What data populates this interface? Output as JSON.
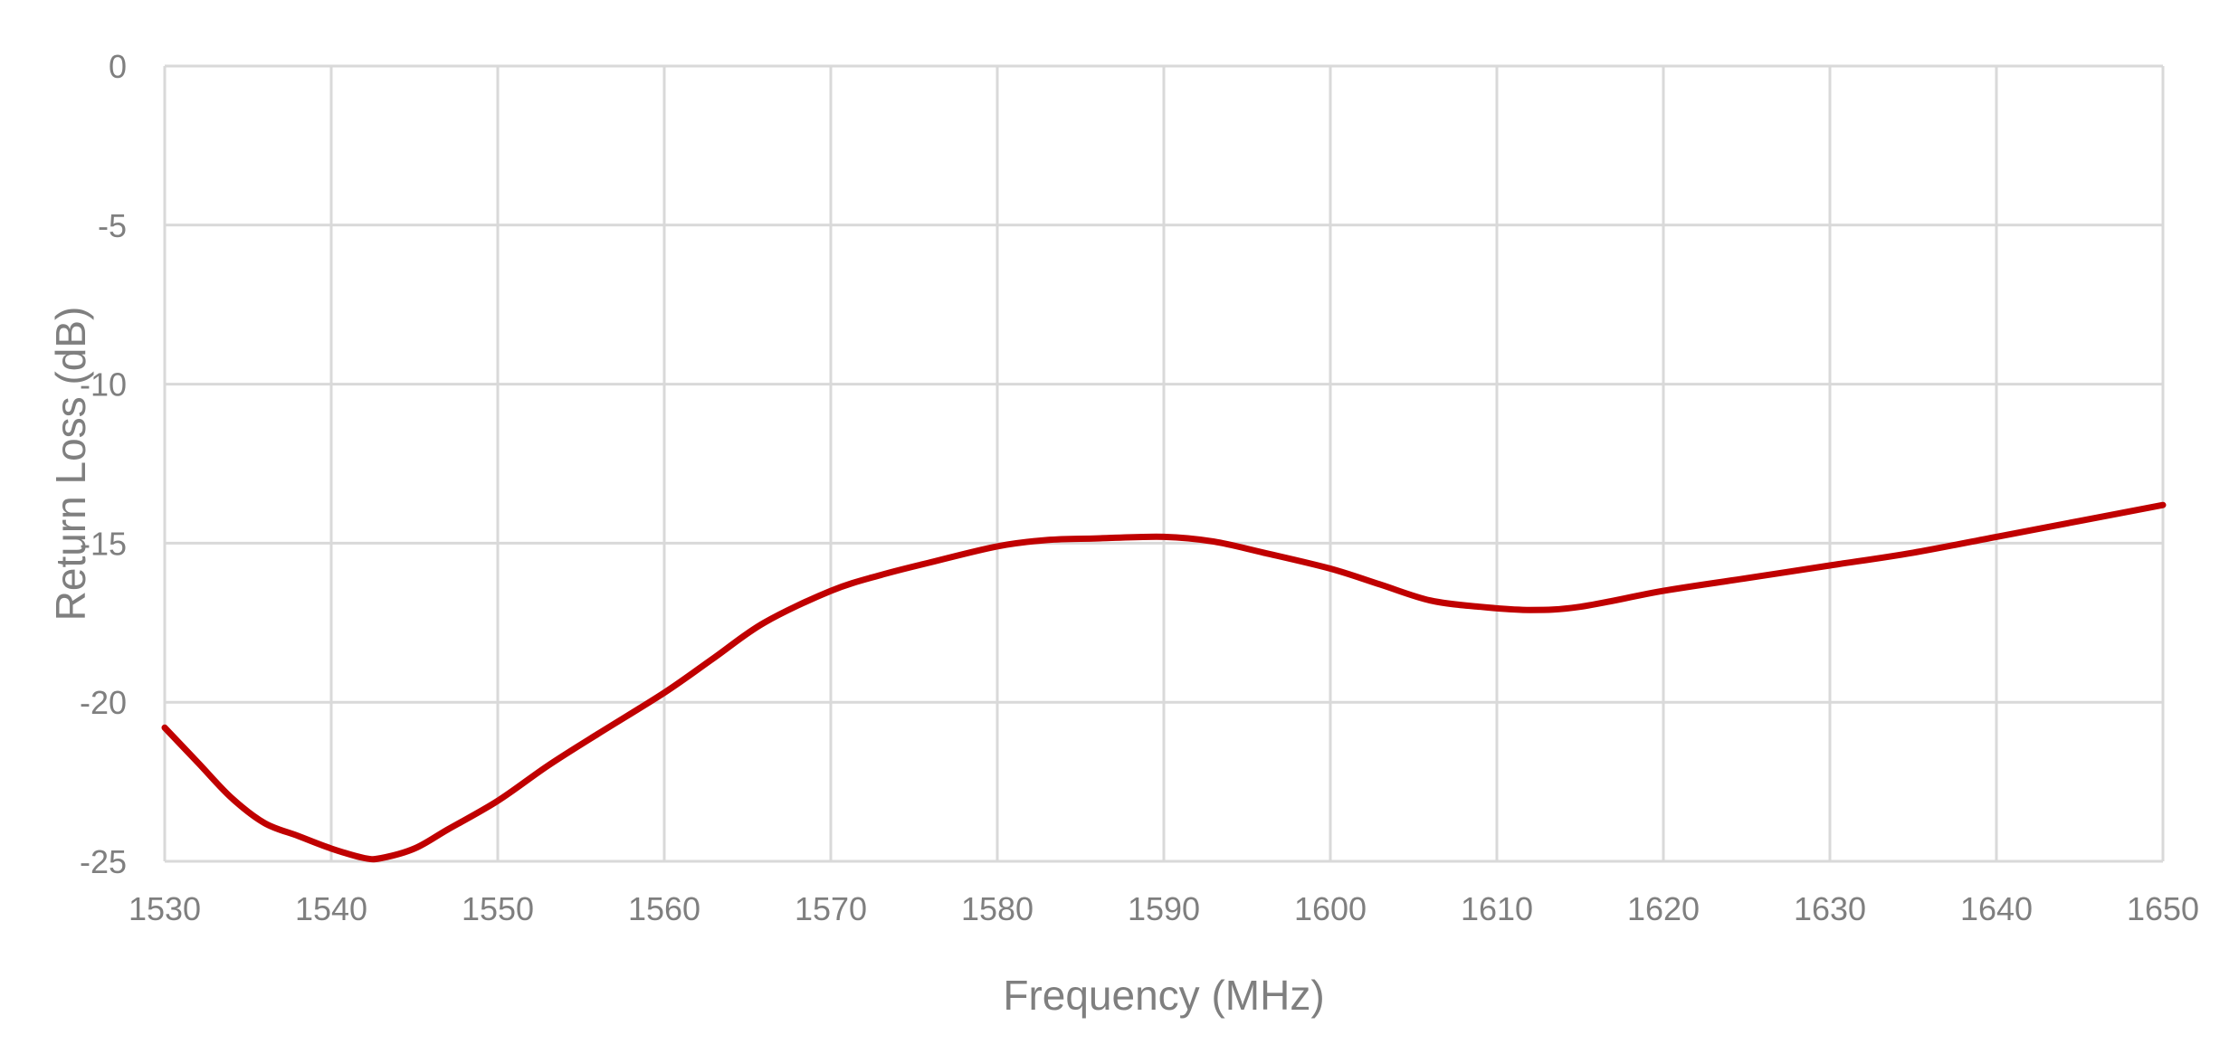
{
  "chart_data": {
    "type": "line",
    "title": "",
    "xlabel": "Frequency (MHz)",
    "ylabel": "Return Loss (dB)",
    "xlim": [
      1530,
      1650
    ],
    "ylim": [
      -25,
      0
    ],
    "x_ticks": [
      1530,
      1540,
      1550,
      1560,
      1570,
      1580,
      1590,
      1600,
      1610,
      1620,
      1630,
      1640,
      1650
    ],
    "y_ticks": [
      0,
      -5,
      -10,
      -15,
      -20,
      -25
    ],
    "grid": true,
    "legend": "none",
    "series": [
      {
        "color": "#c00000",
        "x": [
          1530,
          1532,
          1534,
          1536,
          1538,
          1540,
          1542,
          1543,
          1545,
          1547,
          1550,
          1553,
          1556,
          1560,
          1563,
          1566,
          1570,
          1573,
          1576,
          1580,
          1583,
          1586,
          1590,
          1593,
          1596,
          1600,
          1603,
          1606,
          1609,
          1612,
          1615,
          1620,
          1625,
          1630,
          1635,
          1640,
          1645,
          1650
        ],
        "y": [
          -20.8,
          -21.9,
          -23.0,
          -23.8,
          -24.2,
          -24.6,
          -24.9,
          -24.9,
          -24.6,
          -24.0,
          -23.1,
          -22.0,
          -21.0,
          -19.7,
          -18.6,
          -17.5,
          -16.5,
          -16.0,
          -15.6,
          -15.1,
          -14.9,
          -14.85,
          -14.8,
          -14.95,
          -15.3,
          -15.8,
          -16.3,
          -16.8,
          -17.0,
          -17.1,
          -17.0,
          -16.5,
          -16.1,
          -15.7,
          -15.3,
          -14.8,
          -14.3,
          -13.8
        ]
      }
    ]
  }
}
